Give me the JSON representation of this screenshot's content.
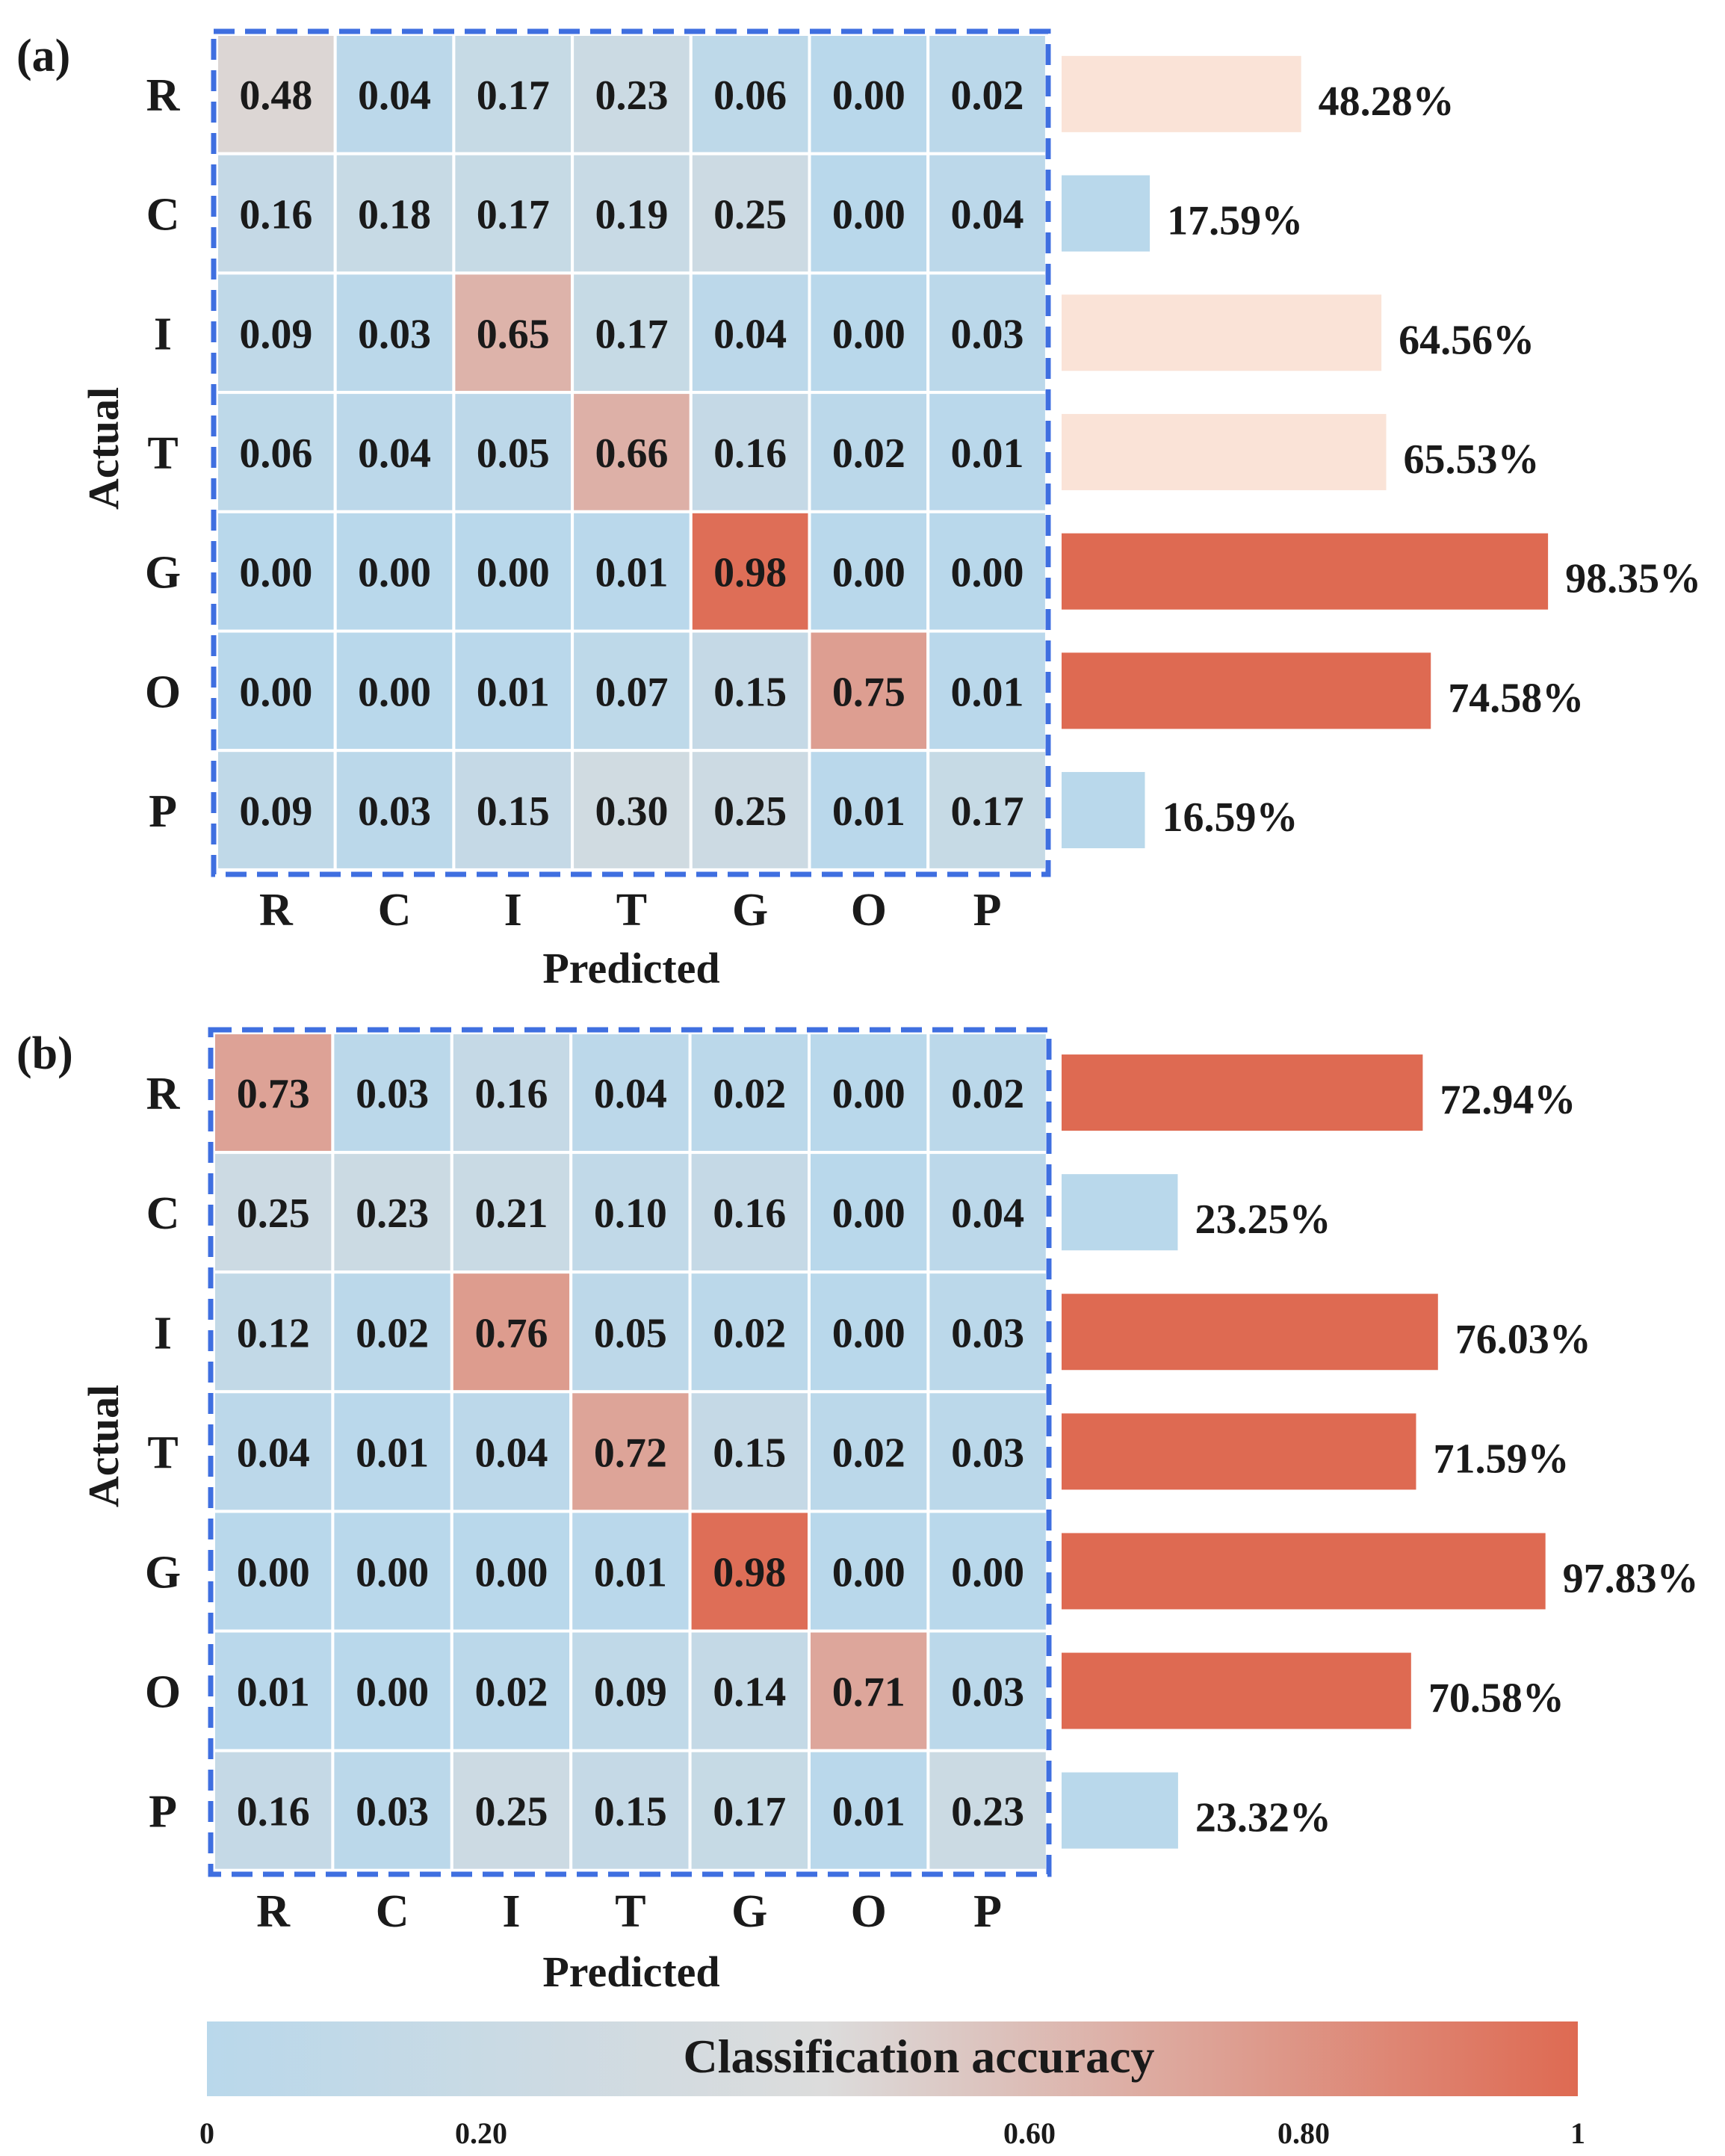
{
  "colors": {
    "low": "#b9d8eb",
    "mid": "#dcdcdc",
    "high": "#de6a52",
    "border_dash": "#3f6fe0",
    "white_text": "#ffffff"
  },
  "chart_data": [
    {
      "type": "heatmap",
      "panel_label": "(a)",
      "ylabel": "Actual",
      "xlabel": "Predicted",
      "row_labels": [
        "R",
        "C",
        "I",
        "T",
        "G",
        "O",
        "P"
      ],
      "col_labels": [
        "R",
        "C",
        "I",
        "T",
        "G",
        "O",
        "P"
      ],
      "matrix": [
        [
          0.48,
          0.04,
          0.17,
          0.23,
          0.06,
          0.0,
          0.02
        ],
        [
          0.16,
          0.18,
          0.17,
          0.19,
          0.25,
          0.0,
          0.04
        ],
        [
          0.09,
          0.03,
          0.65,
          0.17,
          0.04,
          0.0,
          0.03
        ],
        [
          0.06,
          0.04,
          0.05,
          0.66,
          0.16,
          0.02,
          0.01
        ],
        [
          0.0,
          0.0,
          0.0,
          0.01,
          0.98,
          0.0,
          0.0
        ],
        [
          0.0,
          0.0,
          0.01,
          0.07,
          0.15,
          0.75,
          0.01
        ],
        [
          0.09,
          0.03,
          0.15,
          0.3,
          0.25,
          0.01,
          0.17
        ]
      ],
      "matrix_text": [
        [
          "0.48",
          "0.04",
          "0.17",
          "0.23",
          "0.06",
          "0.00",
          "0.02"
        ],
        [
          "0.16",
          "0.18",
          "0.17",
          "0.19",
          "0.25",
          "0.00",
          "0.04"
        ],
        [
          "0.09",
          "0.03",
          "0.65",
          "0.17",
          "0.04",
          "0.00",
          "0.03"
        ],
        [
          "0.06",
          "0.04",
          "0.05",
          "0.66",
          "0.16",
          "0.02",
          "0.01"
        ],
        [
          "0.00",
          "0.00",
          "0.00",
          "0.01",
          "0.98",
          "0.00",
          "0.00"
        ],
        [
          "0.00",
          "0.00",
          "0.01",
          "0.07",
          "0.15",
          "0.75",
          "0.01"
        ],
        [
          "0.09",
          "0.03",
          "0.15",
          "0.30",
          "0.25",
          "0.01",
          "0.17"
        ]
      ],
      "accuracy": {
        "type": "bar",
        "orientation": "horizontal",
        "values": [
          48.28,
          17.59,
          64.56,
          65.53,
          98.35,
          74.58,
          16.59
        ],
        "labels": [
          "48.28%",
          "17.59%",
          "64.56%",
          "65.53%",
          "98.35%",
          "74.58%",
          "16.59%"
        ],
        "bar_colors": [
          "#fae3d7",
          "#b9d8eb",
          "#fae3d7",
          "#fae3d7",
          "#de6a52",
          "#de6a52",
          "#b9d8eb"
        ],
        "xlim": [
          0,
          100
        ]
      }
    },
    {
      "type": "heatmap",
      "panel_label": "(b)",
      "ylabel": "Actual",
      "xlabel": "Predicted",
      "row_labels": [
        "R",
        "C",
        "I",
        "T",
        "G",
        "O",
        "P"
      ],
      "col_labels": [
        "R",
        "C",
        "I",
        "T",
        "G",
        "O",
        "P"
      ],
      "matrix": [
        [
          0.73,
          0.03,
          0.16,
          0.04,
          0.02,
          0.0,
          0.02
        ],
        [
          0.25,
          0.23,
          0.21,
          0.1,
          0.16,
          0.0,
          0.04
        ],
        [
          0.12,
          0.02,
          0.76,
          0.05,
          0.02,
          0.0,
          0.03
        ],
        [
          0.04,
          0.01,
          0.04,
          0.72,
          0.15,
          0.02,
          0.03
        ],
        [
          0.0,
          0.0,
          0.0,
          0.01,
          0.98,
          0.0,
          0.0
        ],
        [
          0.01,
          0.0,
          0.02,
          0.09,
          0.14,
          0.71,
          0.03
        ],
        [
          0.16,
          0.03,
          0.25,
          0.15,
          0.17,
          0.01,
          0.23
        ]
      ],
      "matrix_text": [
        [
          "0.73",
          "0.03",
          "0.16",
          "0.04",
          "0.02",
          "0.00",
          "0.02"
        ],
        [
          "0.25",
          "0.23",
          "0.21",
          "0.10",
          "0.16",
          "0.00",
          "0.04"
        ],
        [
          "0.12",
          "0.02",
          "0.76",
          "0.05",
          "0.02",
          "0.00",
          "0.03"
        ],
        [
          "0.04",
          "0.01",
          "0.04",
          "0.72",
          "0.15",
          "0.02",
          "0.03"
        ],
        [
          "0.00",
          "0.00",
          "0.00",
          "0.01",
          "0.98",
          "0.00",
          "0.00"
        ],
        [
          "0.01",
          "0.00",
          "0.02",
          "0.09",
          "0.14",
          "0.71",
          "0.03"
        ],
        [
          "0.16",
          "0.03",
          "0.25",
          "0.15",
          "0.17",
          "0.01",
          "0.23"
        ]
      ],
      "accuracy": {
        "type": "bar",
        "orientation": "horizontal",
        "values": [
          72.94,
          23.25,
          76.03,
          71.59,
          97.83,
          70.58,
          23.32
        ],
        "labels": [
          "72.94%",
          "23.25%",
          "76.03%",
          "71.59%",
          "97.83%",
          "70.58%",
          "23.32%"
        ],
        "bar_colors": [
          "#de6a52",
          "#b9d8eb",
          "#de6a52",
          "#de6a52",
          "#de6a52",
          "#de6a52",
          "#b9d8eb"
        ],
        "xlim": [
          0,
          100
        ]
      }
    }
  ],
  "colorbar": {
    "title": "Classification accuracy",
    "ticks": [
      0,
      0.2,
      0.6,
      0.8,
      1
    ],
    "tick_labels": [
      "0",
      "0.20",
      "0.60",
      "0.80",
      "1"
    ],
    "range": [
      0,
      1
    ]
  }
}
